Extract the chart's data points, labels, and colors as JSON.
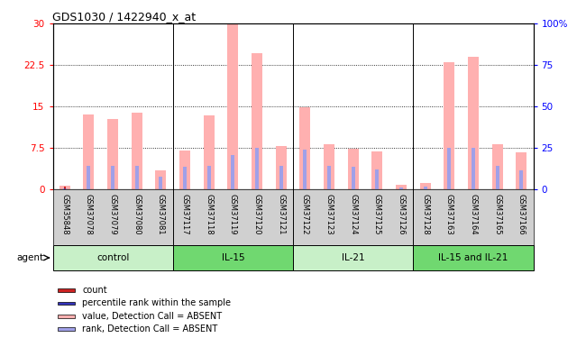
{
  "title": "GDS1030 / 1422940_x_at",
  "samples": [
    "GSM35848",
    "GSM37078",
    "GSM37079",
    "GSM37080",
    "GSM37081",
    "GSM37117",
    "GSM37118",
    "GSM37119",
    "GSM37120",
    "GSM37121",
    "GSM37122",
    "GSM37123",
    "GSM37124",
    "GSM37125",
    "GSM37126",
    "GSM37128",
    "GSM37163",
    "GSM37164",
    "GSM37165",
    "GSM37166"
  ],
  "pink_values": [
    0.6,
    13.5,
    12.8,
    13.8,
    3.5,
    7.0,
    13.4,
    29.8,
    24.6,
    7.9,
    14.8,
    8.1,
    7.4,
    6.9,
    0.8,
    1.1,
    23.0,
    24.0,
    8.2,
    6.7
  ],
  "blue_values": [
    0.2,
    4.2,
    4.2,
    4.2,
    2.3,
    4.0,
    4.2,
    6.2,
    7.5,
    4.3,
    7.2,
    4.3,
    4.1,
    3.6,
    0.3,
    0.5,
    7.5,
    7.5,
    4.3,
    3.5
  ],
  "red_values": [
    0.55,
    0.0,
    0.0,
    0.0,
    0.0,
    0.0,
    0.0,
    0.0,
    0.0,
    0.0,
    0.0,
    0.0,
    0.0,
    0.0,
    0.0,
    0.0,
    0.0,
    0.0,
    0.0,
    0.0
  ],
  "dark_blue_values": [
    0.15,
    0.0,
    0.0,
    0.0,
    0.0,
    0.0,
    0.0,
    0.0,
    0.0,
    0.0,
    0.0,
    0.0,
    0.0,
    0.0,
    0.0,
    0.0,
    0.0,
    0.0,
    0.0,
    0.0
  ],
  "groups": [
    {
      "label": "control",
      "start": 0,
      "end": 5,
      "color": "#c8f0c8"
    },
    {
      "label": "IL-15",
      "start": 5,
      "end": 10,
      "color": "#70d870"
    },
    {
      "label": "IL-21",
      "start": 10,
      "end": 15,
      "color": "#c8f0c8"
    },
    {
      "label": "IL-15 and IL-21",
      "start": 15,
      "end": 20,
      "color": "#70d870"
    }
  ],
  "ylim_left": [
    0,
    30
  ],
  "ylim_right": [
    0,
    100
  ],
  "yticks_left": [
    0,
    7.5,
    15,
    22.5,
    30
  ],
  "yticks_right": [
    0,
    25,
    50,
    75,
    100
  ],
  "pink_color": "#ffb0b0",
  "blue_color": "#a0a0e8",
  "red_color": "#cc2222",
  "dark_blue_color": "#3333bb",
  "bg_color": "#ffffff",
  "tick_label_area_bg": "#d0d0d0",
  "agent_label": "agent",
  "legend_items": [
    {
      "color": "#cc2222",
      "label": "count"
    },
    {
      "color": "#3333bb",
      "label": "percentile rank within the sample"
    },
    {
      "color": "#ffb0b0",
      "label": "value, Detection Call = ABSENT"
    },
    {
      "color": "#a0a0e8",
      "label": "rank, Detection Call = ABSENT"
    }
  ]
}
